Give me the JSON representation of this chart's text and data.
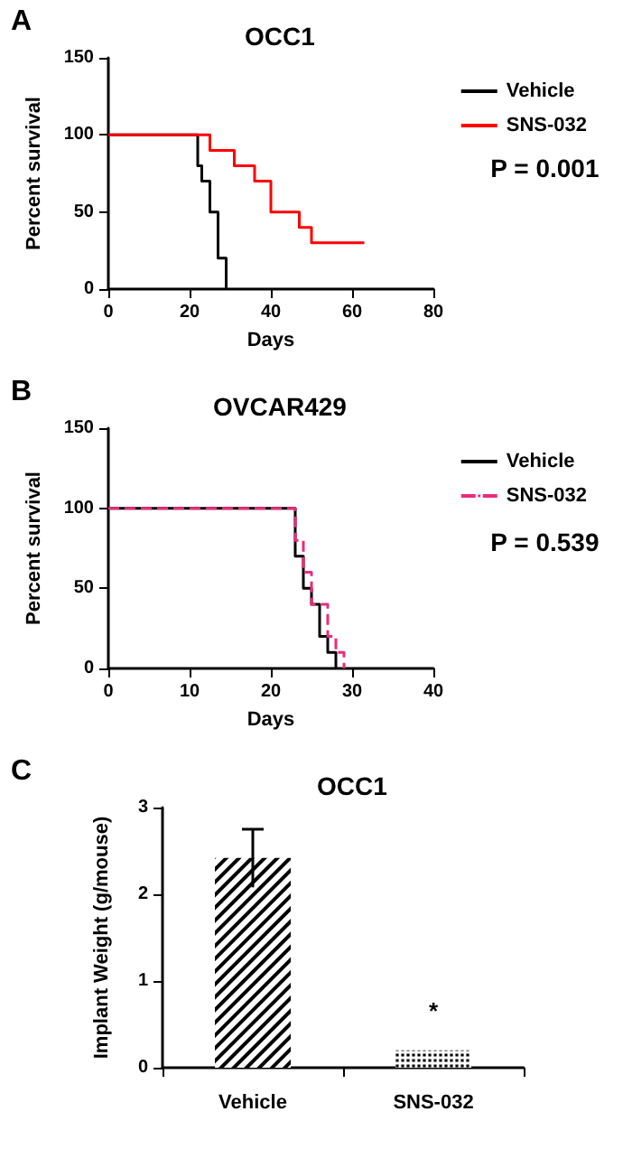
{
  "chart_data": [
    {
      "type": "step",
      "title": "OCC1",
      "xlabel": "Days",
      "ylabel": "Percent survival",
      "xlim": [
        0,
        80
      ],
      "xticks": [
        0,
        20,
        40,
        60,
        80
      ],
      "ylim": [
        0,
        150
      ],
      "yticks": [
        0,
        50,
        100,
        150
      ],
      "grid": false,
      "legend": "top right",
      "annotations": [
        "A",
        "P = 0.001"
      ],
      "series": [
        {
          "name": "Vehicle",
          "color": "#000000",
          "x": [
            0,
            22,
            23,
            25,
            27,
            29
          ],
          "values": [
            100,
            80,
            70,
            50,
            20,
            0
          ]
        },
        {
          "name": "SNS-032",
          "color": "#ff0000",
          "x": [
            0,
            25,
            31,
            36,
            40,
            47,
            50,
            63
          ],
          "values": [
            100,
            90,
            80,
            70,
            50,
            40,
            30,
            30
          ]
        }
      ]
    },
    {
      "type": "step",
      "title": "OVCAR429",
      "xlabel": "Days",
      "ylabel": "Percent survival",
      "xlim": [
        0,
        40
      ],
      "xticks": [
        0,
        10,
        20,
        30,
        40
      ],
      "ylim": [
        0,
        150
      ],
      "yticks": [
        0,
        50,
        100,
        150
      ],
      "grid": false,
      "legend": "top right",
      "annotations": [
        "B",
        "P = 0.539"
      ],
      "series": [
        {
          "name": "Vehicle",
          "color": "#000000",
          "x": [
            0,
            23,
            24,
            25,
            26,
            27,
            28
          ],
          "values": [
            100,
            70,
            50,
            40,
            20,
            10,
            0
          ]
        },
        {
          "name": "SNS-032",
          "color": "#ee2a7b",
          "line_style": "dashed",
          "x": [
            0,
            23,
            24,
            25,
            27,
            28,
            29
          ],
          "values": [
            100,
            80,
            60,
            40,
            20,
            10,
            0
          ]
        }
      ]
    },
    {
      "type": "bar",
      "title": "OCC1",
      "ylabel": "Implant Weight (g/mouse)",
      "categories": [
        "Vehicle",
        "SNS-032"
      ],
      "values": [
        2.42,
        0.2
      ],
      "errors": [
        [
          2.08,
          2.75
        ],
        null
      ],
      "colors": [
        "#000000",
        "#000000"
      ],
      "ylim": [
        0,
        3
      ],
      "yticks": [
        0,
        1,
        2,
        3
      ],
      "grid": false,
      "annotations": [
        "C",
        {
          "text": "*",
          "x": "SNS-032",
          "y": 0.2
        }
      ]
    }
  ]
}
